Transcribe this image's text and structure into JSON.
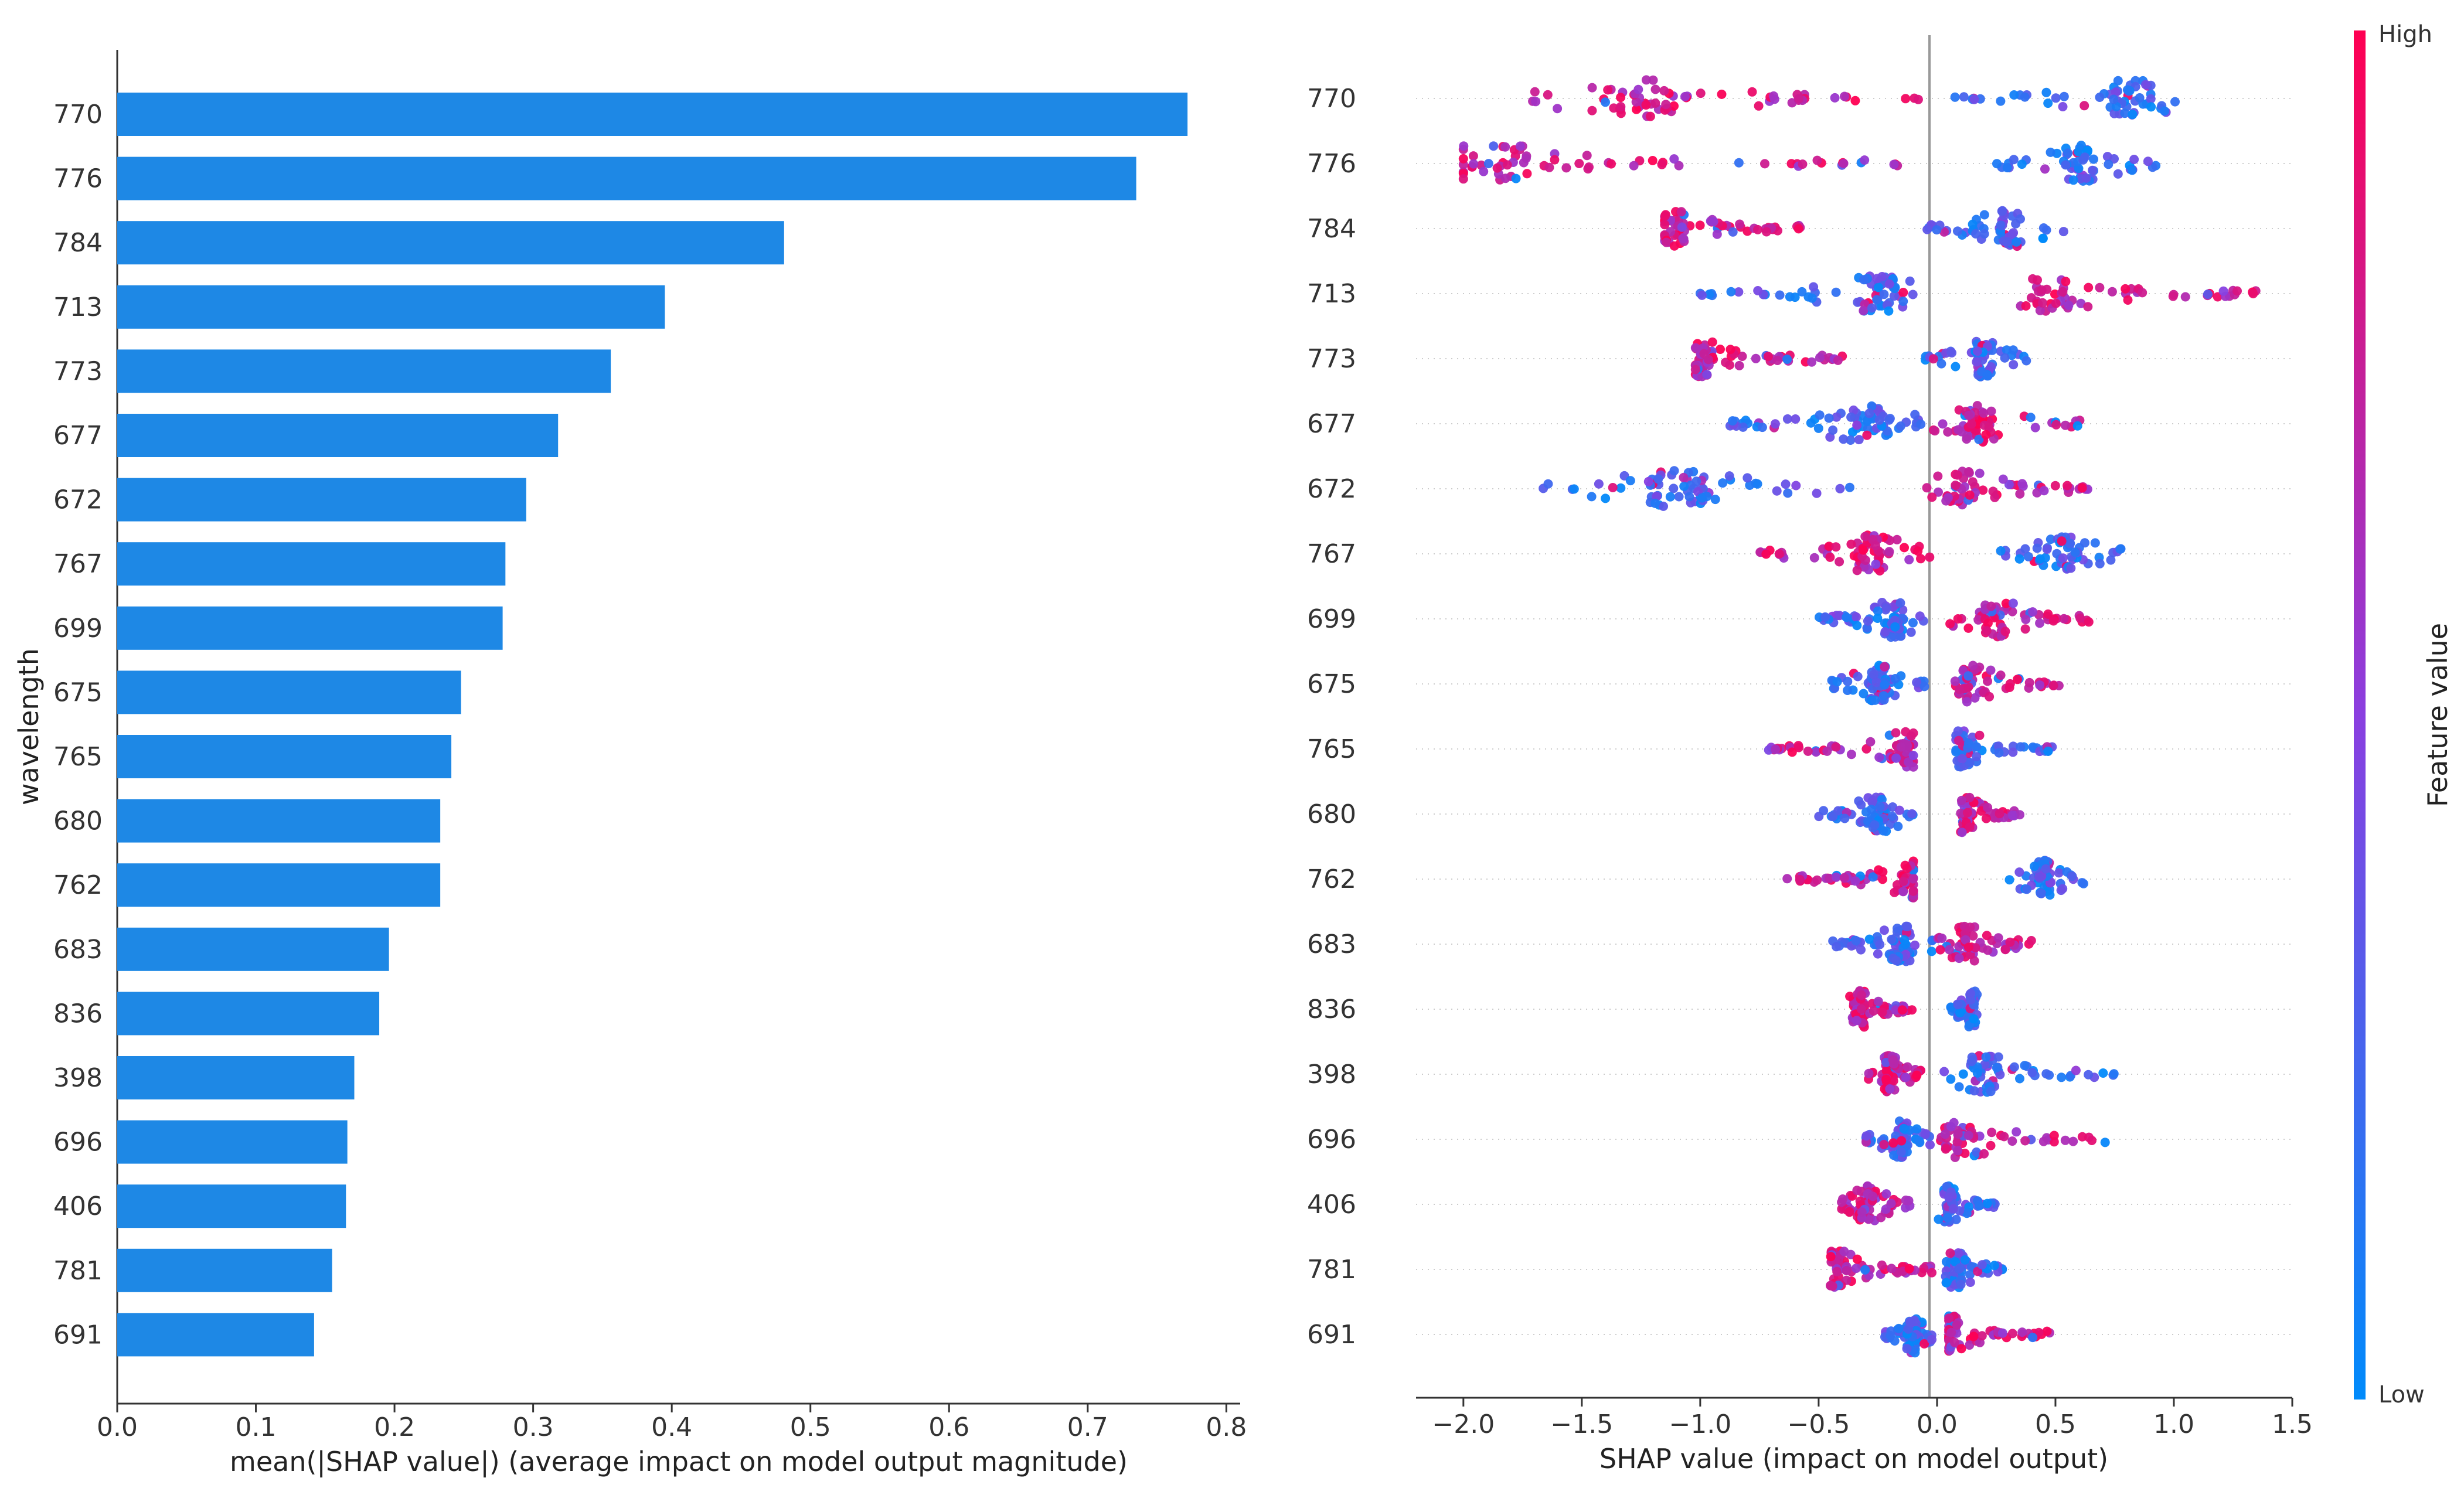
{
  "chart_data": [
    {
      "type": "bar",
      "orientation": "horizontal",
      "title": "",
      "ylabel": "wavelength",
      "xlabel": "mean(|SHAP value|) (average impact on model output magnitude)",
      "xlim": [
        0.0,
        0.81
      ],
      "xticks": [
        "0.0",
        "0.1",
        "0.2",
        "0.3",
        "0.4",
        "0.5",
        "0.6",
        "0.7",
        "0.8"
      ],
      "color": "#1e88e5",
      "categories": [
        "770",
        "776",
        "784",
        "713",
        "773",
        "677",
        "672",
        "767",
        "699",
        "675",
        "765",
        "680",
        "762",
        "683",
        "836",
        "398",
        "696",
        "406",
        "781",
        "691"
      ],
      "values": [
        0.772,
        0.735,
        0.481,
        0.395,
        0.356,
        0.318,
        0.295,
        0.28,
        0.278,
        0.248,
        0.241,
        0.233,
        0.233,
        0.196,
        0.189,
        0.171,
        0.166,
        0.165,
        0.155,
        0.142
      ]
    },
    {
      "type": "scatter",
      "subtype": "shap-beeswarm",
      "xlabel": "SHAP value (impact on model output)",
      "xlim": [
        -2.2,
        1.5
      ],
      "xticks": [
        "−2.0",
        "−1.5",
        "−1.0",
        "−0.5",
        "0.0",
        "0.5",
        "1.0",
        "1.5"
      ],
      "colorbar": {
        "title": "Feature value",
        "high_label": "High",
        "low_label": "Low",
        "low_color": "#008bfb",
        "high_color": "#ff0052"
      },
      "features": [
        {
          "name": "770",
          "neg_range": [
            -1.75,
            -0.05
          ],
          "neg_mode": -1.25,
          "neg_feature": "high",
          "pos_range": [
            0.05,
            1.05
          ],
          "pos_mode": 0.82,
          "pos_feature": "low"
        },
        {
          "name": "776",
          "neg_range": [
            -2.0,
            -0.1
          ],
          "neg_mode": -1.88,
          "neg_feature": "high",
          "pos_range": [
            0.25,
            0.95
          ],
          "pos_mode": 0.6,
          "pos_feature": "low"
        },
        {
          "name": "784",
          "neg_range": [
            -1.15,
            -0.55
          ],
          "neg_mode": -1.12,
          "neg_feature": "high",
          "pos_range": [
            -0.05,
            0.55
          ],
          "pos_mode": 0.3,
          "pos_feature": "low"
        },
        {
          "name": "713",
          "neg_range": [
            -1.0,
            -0.1
          ],
          "neg_mode": -0.25,
          "neg_feature": "low",
          "pos_range": [
            0.35,
            1.35
          ],
          "pos_mode": 0.47,
          "pos_feature": "high"
        },
        {
          "name": "773",
          "neg_range": [
            -1.02,
            -0.4
          ],
          "neg_mode": -1.0,
          "neg_feature": "high",
          "pos_range": [
            -0.05,
            0.38
          ],
          "pos_mode": 0.2,
          "pos_feature": "low"
        },
        {
          "name": "677",
          "neg_range": [
            -0.9,
            -0.05
          ],
          "neg_mode": -0.3,
          "neg_feature": "low",
          "pos_range": [
            -0.05,
            0.65
          ],
          "pos_mode": 0.18,
          "pos_feature": "high"
        },
        {
          "name": "672",
          "neg_range": [
            -1.7,
            -0.35
          ],
          "neg_mode": -1.1,
          "neg_feature": "low",
          "pos_range": [
            -0.05,
            0.65
          ],
          "pos_mode": 0.1,
          "pos_feature": "high"
        },
        {
          "name": "767",
          "neg_range": [
            -0.75,
            0.0
          ],
          "neg_mode": -0.28,
          "neg_feature": "high",
          "pos_range": [
            0.25,
            0.78
          ],
          "pos_mode": 0.55,
          "pos_feature": "low"
        },
        {
          "name": "699",
          "neg_range": [
            -0.5,
            -0.05
          ],
          "neg_mode": -0.18,
          "neg_feature": "low",
          "pos_range": [
            0.05,
            0.65
          ],
          "pos_mode": 0.25,
          "pos_feature": "high"
        },
        {
          "name": "675",
          "neg_range": [
            -0.45,
            -0.05
          ],
          "neg_mode": -0.25,
          "neg_feature": "low",
          "pos_range": [
            0.05,
            0.52
          ],
          "pos_mode": 0.15,
          "pos_feature": "high"
        },
        {
          "name": "765",
          "neg_range": [
            -0.75,
            -0.1
          ],
          "neg_mode": -0.12,
          "neg_feature": "high",
          "pos_range": [
            0.08,
            0.5
          ],
          "pos_mode": 0.1,
          "pos_feature": "low"
        },
        {
          "name": "680",
          "neg_range": [
            -0.5,
            -0.1
          ],
          "neg_mode": -0.25,
          "neg_feature": "low",
          "pos_range": [
            0.1,
            0.35
          ],
          "pos_mode": 0.12,
          "pos_feature": "high"
        },
        {
          "name": "762",
          "neg_range": [
            -0.65,
            -0.1
          ],
          "neg_mode": -0.1,
          "neg_feature": "high",
          "pos_range": [
            0.3,
            0.65
          ],
          "pos_mode": 0.45,
          "pos_feature": "low"
        },
        {
          "name": "683",
          "neg_range": [
            -0.45,
            -0.02
          ],
          "neg_mode": -0.15,
          "neg_feature": "low",
          "pos_range": [
            0.0,
            0.42
          ],
          "pos_mode": 0.13,
          "pos_feature": "high"
        },
        {
          "name": "836",
          "neg_range": [
            -0.38,
            -0.1
          ],
          "neg_mode": -0.33,
          "neg_feature": "high",
          "pos_range": [
            0.03,
            0.18
          ],
          "pos_mode": 0.15,
          "pos_feature": "low"
        },
        {
          "name": "398",
          "neg_range": [
            -0.3,
            -0.05
          ],
          "neg_mode": -0.2,
          "neg_feature": "high",
          "pos_range": [
            0.0,
            0.75
          ],
          "pos_mode": 0.2,
          "pos_feature": "low"
        },
        {
          "name": "696",
          "neg_range": [
            -0.3,
            -0.02
          ],
          "neg_mode": -0.15,
          "neg_feature": "low",
          "pos_range": [
            0.0,
            0.78
          ],
          "pos_mode": 0.1,
          "pos_feature": "high"
        },
        {
          "name": "406",
          "neg_range": [
            -0.42,
            -0.1
          ],
          "neg_mode": -0.3,
          "neg_feature": "high",
          "pos_range": [
            0.0,
            0.25
          ],
          "pos_mode": 0.05,
          "pos_feature": "low"
        },
        {
          "name": "781",
          "neg_range": [
            -0.45,
            -0.02
          ],
          "neg_mode": -0.42,
          "neg_feature": "high",
          "pos_range": [
            0.0,
            0.28
          ],
          "pos_mode": 0.08,
          "pos_feature": "low"
        },
        {
          "name": "691",
          "neg_range": [
            -0.22,
            -0.02
          ],
          "neg_mode": -0.1,
          "neg_feature": "low",
          "pos_range": [
            0.05,
            0.48
          ],
          "pos_mode": 0.05,
          "pos_feature": "high"
        }
      ]
    }
  ]
}
